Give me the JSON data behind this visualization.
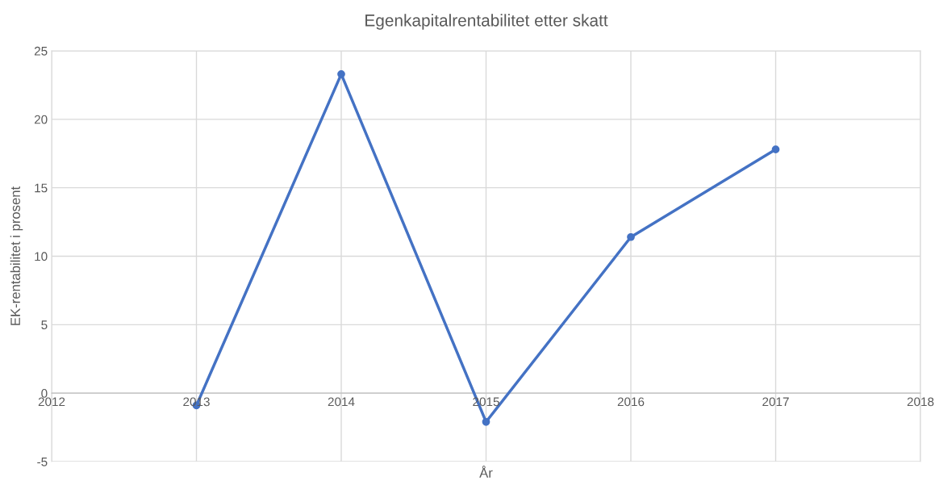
{
  "chart_data": {
    "type": "line",
    "title": "Egenkapitalrentabilitet etter skatt",
    "xlabel": "År",
    "ylabel": "EK-rentabilitet i prosent",
    "x": [
      2013,
      2014,
      2015,
      2016,
      2017
    ],
    "series": [
      {
        "color": "#4472c4",
        "values": [
          -0.9,
          23.3,
          -2.1,
          11.4,
          17.8
        ]
      }
    ],
    "xlim": [
      2012,
      2018
    ],
    "xticks": [
      2012,
      2013,
      2014,
      2015,
      2016,
      2017,
      2018
    ],
    "ylim": [
      -5,
      25
    ],
    "yticks": [
      -5,
      0,
      5,
      10,
      15,
      20,
      25
    ],
    "grid": true,
    "marker": "circle",
    "line_style": "solid",
    "legend": false
  }
}
